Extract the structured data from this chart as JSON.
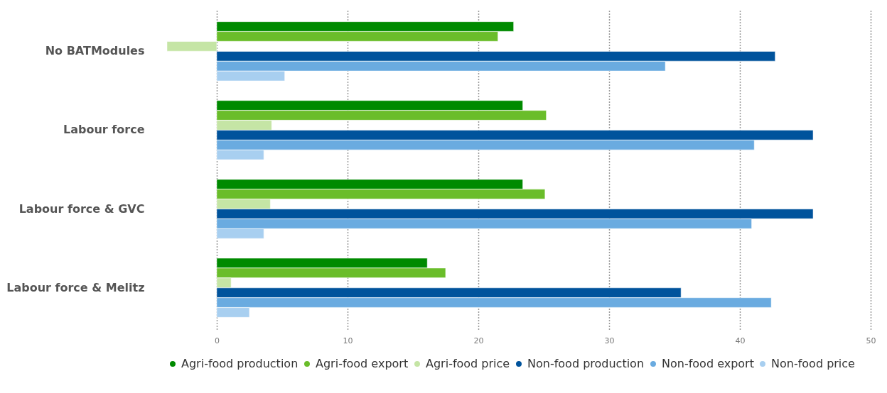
{
  "chart_data": {
    "type": "bar",
    "orientation": "horizontal",
    "categories": [
      "No BATModules",
      "Labour force",
      "Labour force & GVC",
      "Labour force & Melitz"
    ],
    "series": [
      {
        "name": "Agri-food production",
        "color": "#008a00",
        "values": [
          22.7,
          23.4,
          23.4,
          16.1
        ]
      },
      {
        "name": "Agri-food export",
        "color": "#6abd2a",
        "values": [
          21.5,
          25.2,
          25.1,
          17.5
        ]
      },
      {
        "name": "Agri-food price",
        "color": "#c5e5a5",
        "values": [
          -3.8,
          4.2,
          4.1,
          1.1
        ]
      },
      {
        "name": "Non-food production",
        "color": "#00539c",
        "values": [
          42.7,
          45.6,
          45.6,
          35.5
        ]
      },
      {
        "name": "Non-food export",
        "color": "#6aabe0",
        "values": [
          34.3,
          41.1,
          40.9,
          42.4
        ]
      },
      {
        "name": "Non-food price",
        "color": "#a8cff0",
        "values": [
          5.2,
          3.6,
          3.6,
          2.5
        ]
      }
    ],
    "xlim": [
      -3.8,
      50
    ],
    "xticks": [
      0,
      10,
      20,
      30,
      40,
      50
    ],
    "grid": "x",
    "legend": "bottom"
  }
}
